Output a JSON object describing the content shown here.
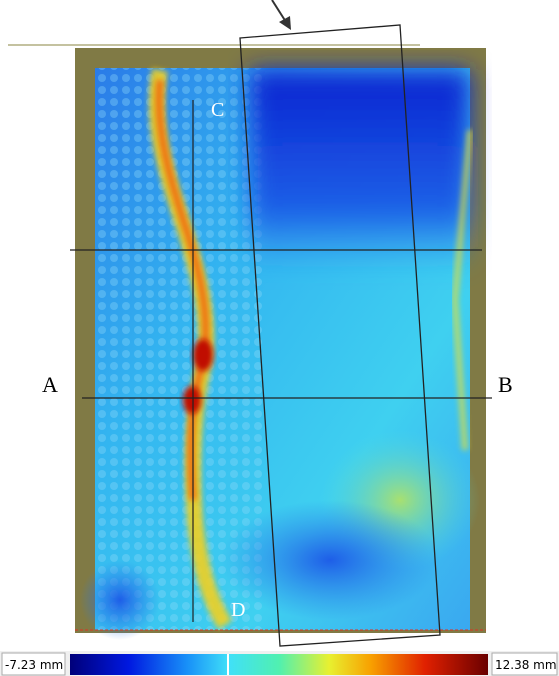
{
  "labels": {
    "a": "A",
    "b": "B",
    "c": "C",
    "d": "D"
  },
  "colorbar": {
    "min_label": "-7.23 mm",
    "max_label": "12.38 mm"
  }
}
